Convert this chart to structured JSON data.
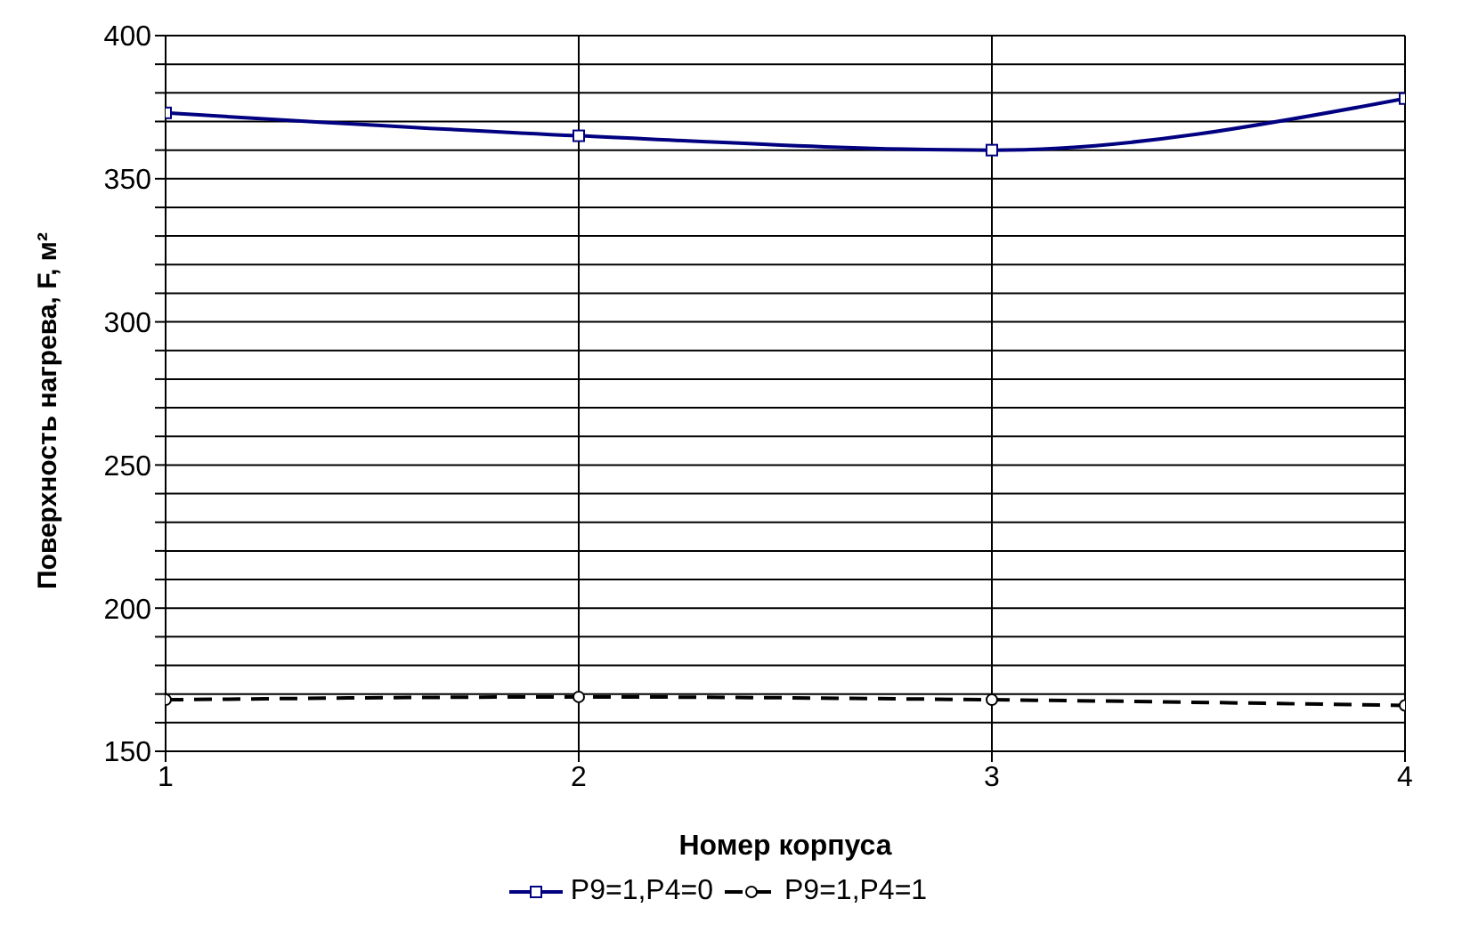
{
  "chart_data": {
    "type": "line",
    "xlabel": "Номер корпуса",
    "ylabel": "Поверхность нагрева, F, м²",
    "x": [
      1,
      2,
      3,
      4
    ],
    "series": [
      {
        "name": "P9=1,P4=0",
        "color": "#000080",
        "marker": "square",
        "line_style": "solid",
        "values": [
          373,
          365,
          360,
          378
        ]
      },
      {
        "name": "P9=1,P4=1",
        "color": "#000000",
        "marker": "circle",
        "line_style": "dashed",
        "values": [
          168,
          169,
          168,
          166
        ]
      }
    ],
    "xlim": [
      1,
      4
    ],
    "xticks": [
      1,
      2,
      3,
      4
    ],
    "ylim": [
      150,
      400
    ],
    "yticks": [
      150,
      {
        "value": 160,
        "label": null
      },
      {
        "value": 170,
        "label": null
      },
      {
        "value": 180,
        "label": null
      },
      {
        "value": 190,
        "label": null
      },
      200,
      {
        "value": 210,
        "label": null
      },
      {
        "value": 220,
        "label": null
      },
      {
        "value": 230,
        "label": null
      },
      {
        "value": 240,
        "label": null
      },
      250,
      {
        "value": 260,
        "label": null
      },
      {
        "value": 270,
        "label": null
      },
      {
        "value": 280,
        "label": null
      },
      {
        "value": 290,
        "label": null
      },
      300,
      {
        "value": 310,
        "label": null
      },
      {
        "value": 320,
        "label": null
      },
      {
        "value": 330,
        "label": null
      },
      {
        "value": 340,
        "label": null
      },
      350,
      {
        "value": 360,
        "label": null
      },
      {
        "value": 370,
        "label": null
      },
      {
        "value": 380,
        "label": null
      },
      {
        "value": 390,
        "label": null
      },
      400
    ],
    "grid": true,
    "legend": "bottom"
  }
}
